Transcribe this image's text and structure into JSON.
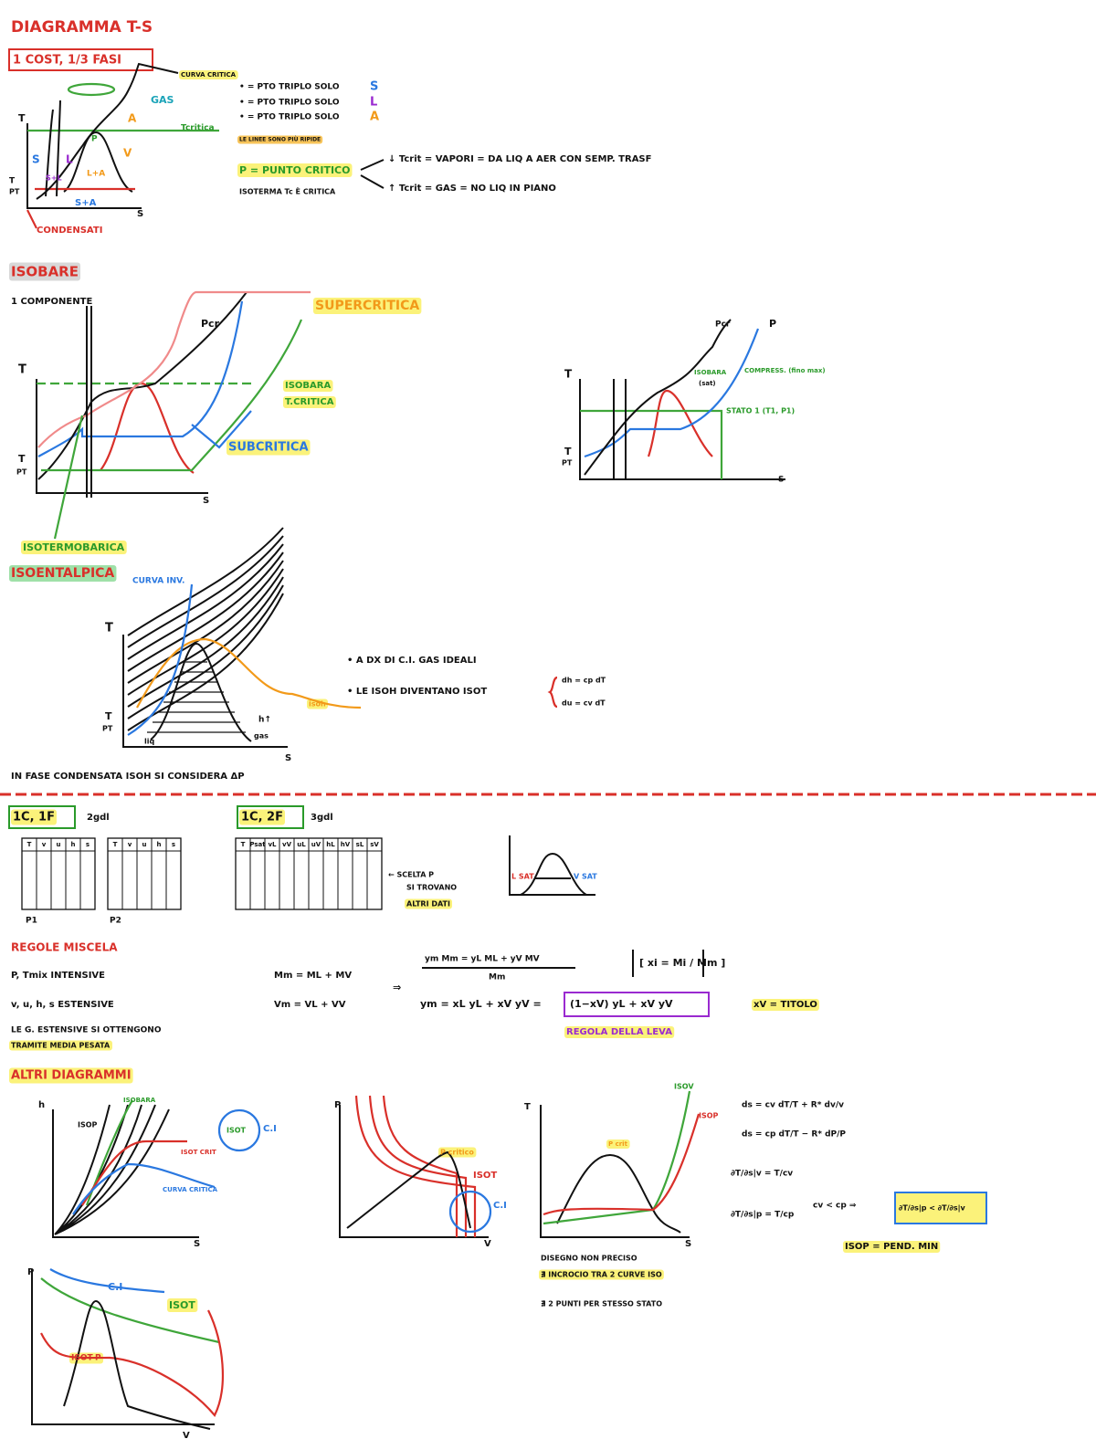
{
  "header": {
    "title": "DIAGRAMMA T-S",
    "box": "1 COST, 1/3 FASI"
  },
  "triple_point": {
    "labels": [
      "T",
      "S",
      "L",
      "S+L",
      "L+A",
      "S+A",
      "GAS",
      "A",
      "V",
      "P",
      "Tcritica",
      "CURVA CRITICA",
      "CONDENSATI",
      "S",
      "T",
      "PT"
    ],
    "legend": [
      "• = PTO TRIPLO SOLO",
      "S",
      "• = PTO TRIPLO SOLO",
      "L",
      "• = PTO TRIPLO SOLO",
      "A"
    ],
    "notes": [
      "LE LINEE SONO PIÙ RIPIDE",
      "P = PUNTO CRITICO",
      "ISOTERMA Tc È CRITICA",
      "↓ Tcrit = VAPORI  =  DA LIQ A AER CON SEMP. TRASF",
      "↑ Tcrit = GAS  =  NO LIQ IN PIANO"
    ]
  },
  "isobars": {
    "title": "ISOBARE",
    "subtitle": "1 COMPONENTE",
    "labels": [
      "SUPERCRITICA",
      "Pcr",
      "T",
      "ISOBARA",
      "T.CRITICA",
      "SUBCRITICA",
      "T",
      "PT",
      "S",
      "ISOTERMOBARICA"
    ],
    "right": [
      "Pcr",
      "P",
      "T",
      "ISOBARA",
      "(sat)",
      "COMPRESS. (fino max)",
      "STATO 1 (T1, P1)",
      "T",
      "PT",
      "S"
    ]
  },
  "isenthalpic": {
    "title": "ISOENTALPICA",
    "labels": [
      "CURVA INV.",
      "T",
      "T",
      "PT",
      "S",
      "liq",
      "gas",
      "isoh",
      "h↑"
    ],
    "notes": [
      "• A DX DI C.I. GAS IDEALI",
      "• LE ISOH DIVENTANO ISOT",
      "dh = cp dT",
      "du = cv dT"
    ],
    "footer": "IN FASE CONDENSATA ISOH SI CONSIDERA ΔP"
  },
  "tables": {
    "one_phase": "1C, 1F",
    "one_phase_dof": "2gdl",
    "one_phase_header": [
      "T",
      "v",
      "u",
      "h",
      "s"
    ],
    "p_labels": [
      "P1",
      "P2"
    ],
    "two_phase": "1C, 2F",
    "two_phase_dof": "3gdl",
    "two_phase_header": [
      "T",
      "Psat",
      "vL",
      "vV",
      "uL",
      "uV",
      "hL",
      "hV",
      "sL",
      "sV"
    ],
    "note": [
      "← SCELTA P",
      "SI TROVANO",
      "ALTRI DATI"
    ],
    "sat": [
      "L SAT",
      "V SAT"
    ]
  },
  "mixture": {
    "title": "REGOLE MISCELA",
    "lines": [
      "P, Tmix  INTENSIVE",
      "v, u, h, s  ESTENSIVE",
      "LE G. ESTENSIVE SI OTTENGONO",
      "TRAMITE MEDIA PESATA",
      "Mm = ML + MV",
      "Vm = VL + VV",
      "⇒",
      "ym Mm = yL ML + yV MV",
      "Mm",
      "[ xi = Mi / Mm ]",
      "ym = xL yL + xV yV =",
      "(1−xV) yL + xV yV",
      "xV = TITOLO",
      "REGOLA DELLA LEVA"
    ]
  },
  "other_diagrams": {
    "title": "ALTRI DIAGRAMMI",
    "hs": [
      "h",
      "S",
      "ISOP",
      "ISOBARA",
      "ISOT CRIT",
      "CURVA CRITICA",
      "ISOT",
      "C.I"
    ],
    "pv": [
      "P",
      "V",
      "P critico",
      "ISOT",
      "C.I"
    ],
    "ts": [
      "T",
      "S",
      "ISOV",
      "ISOP",
      "P crit",
      "DISEGNO NON PRECISO",
      "∄ INCROCIO TRA 2 CURVE ISO",
      "∄ 2 PUNTI PER STESSO STATO"
    ],
    "equations": [
      "ds = cv dT/T + R* dv/v",
      "ds = cp dT/T − R* dP/P",
      "∂T/∂s|v = T/cv",
      "∂T/∂s|p = T/cp",
      "cv < cp ⇒",
      "∂T/∂s|p < ∂T/∂s|v",
      "ISOP = PEND. MIN"
    ],
    "pv2": [
      "P",
      "V",
      "C.I",
      "ISOT",
      "ISOT-P"
    ]
  }
}
